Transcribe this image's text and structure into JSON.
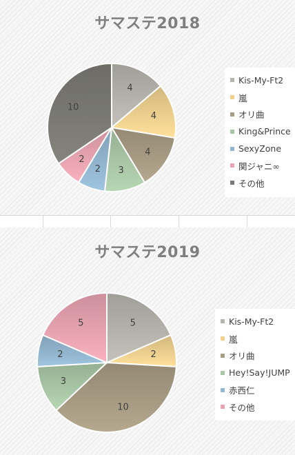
{
  "chart_data": [
    {
      "type": "pie",
      "title": "サマステ2018",
      "slices": [
        {
          "label": "Kis-My-Ft2",
          "value": 4,
          "color": "#b6b4ad"
        },
        {
          "label": "嵐",
          "value": 4,
          "color": "#efd08f"
        },
        {
          "label": "オリ曲",
          "value": 4,
          "color": "#a89c84"
        },
        {
          "label": "King&Prince",
          "value": 3,
          "color": "#a9c7a6"
        },
        {
          "label": "SexyZone",
          "value": 2,
          "color": "#93b6cf"
        },
        {
          "label": "関ジャニ∞",
          "value": 2,
          "color": "#e8a4b1"
        },
        {
          "label": "その他",
          "value": 10,
          "color": "#7b7a74"
        }
      ],
      "start_angle_deg": 0,
      "direction": "clockwise",
      "data_labels": true,
      "legend_position": "right"
    },
    {
      "type": "pie",
      "title": "サマステ2019",
      "slices": [
        {
          "label": "Kis-My-Ft2",
          "value": 5,
          "color": "#b6b4ad"
        },
        {
          "label": "嵐",
          "value": 2,
          "color": "#efd08f"
        },
        {
          "label": "オリ曲",
          "value": 10,
          "color": "#a89c84"
        },
        {
          "label": "Hey!Say!JUMP",
          "value": 3,
          "color": "#a9c7a6"
        },
        {
          "label": "赤西仁",
          "value": 2,
          "color": "#93b6cf"
        },
        {
          "label": "その他",
          "value": 5,
          "color": "#e8a4b1"
        }
      ],
      "start_angle_deg": 0,
      "direction": "clockwise",
      "data_labels": true,
      "legend_position": "right"
    }
  ]
}
